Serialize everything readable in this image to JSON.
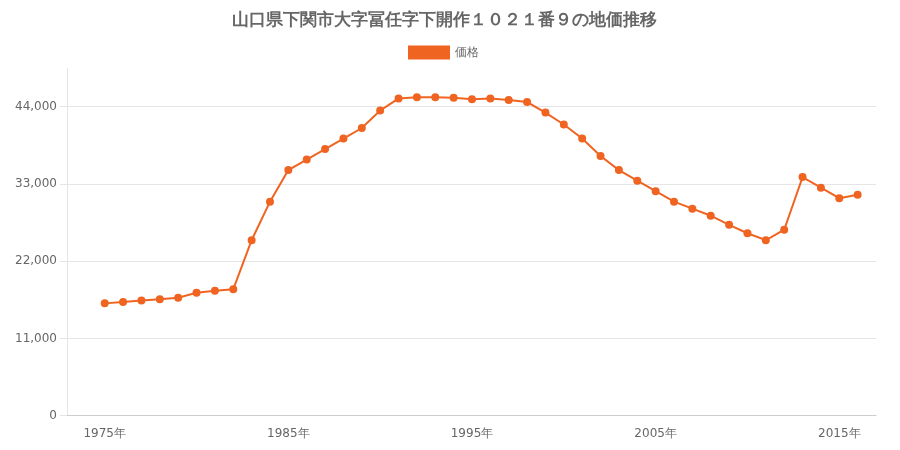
{
  "chart_data": {
    "type": "line",
    "title": "山口県下関市大字冨任字下開作１０２１番９の地価推移",
    "x": [
      1975,
      1976,
      1977,
      1978,
      1979,
      1980,
      1981,
      1982,
      1983,
      1984,
      1985,
      1986,
      1987,
      1988,
      1989,
      1990,
      1991,
      1992,
      1993,
      1994,
      1995,
      1996,
      1997,
      1998,
      1999,
      2000,
      2001,
      2002,
      2003,
      2004,
      2005,
      2006,
      2007,
      2008,
      2009,
      2010,
      2011,
      2012,
      2013,
      2014,
      2015,
      2016
    ],
    "series": [
      {
        "name": "価格",
        "color": "#f06422",
        "marker": "circle",
        "values": [
          16000,
          16200,
          16400,
          16600,
          16800,
          17500,
          17800,
          18000,
          25000,
          30500,
          35000,
          36500,
          38000,
          39500,
          41000,
          43500,
          45200,
          45400,
          45400,
          45300,
          45100,
          45200,
          45000,
          44700,
          43200,
          41500,
          39500,
          37000,
          35000,
          33500,
          32000,
          30500,
          29500,
          28500,
          27200,
          26000,
          25000,
          26500,
          34000,
          32500,
          31000,
          31500
        ]
      }
    ],
    "xlim": [
      1973,
      2017
    ],
    "xticks": [
      {
        "value": 1975,
        "label": "1975年"
      },
      {
        "value": 1985,
        "label": "1985年"
      },
      {
        "value": 1995,
        "label": "1995年"
      },
      {
        "value": 2005,
        "label": "2005年"
      },
      {
        "value": 2015,
        "label": "2015年"
      }
    ],
    "ylim": [
      0,
      49500
    ],
    "yticks": [
      0,
      {
        "value": 11000,
        "label": "11,000"
      },
      {
        "value": 22000,
        "label": "22,000"
      },
      {
        "value": 33000,
        "label": "33,000"
      },
      {
        "value": 44000,
        "label": "44,000"
      }
    ],
    "grid": "y",
    "legend": "top"
  }
}
